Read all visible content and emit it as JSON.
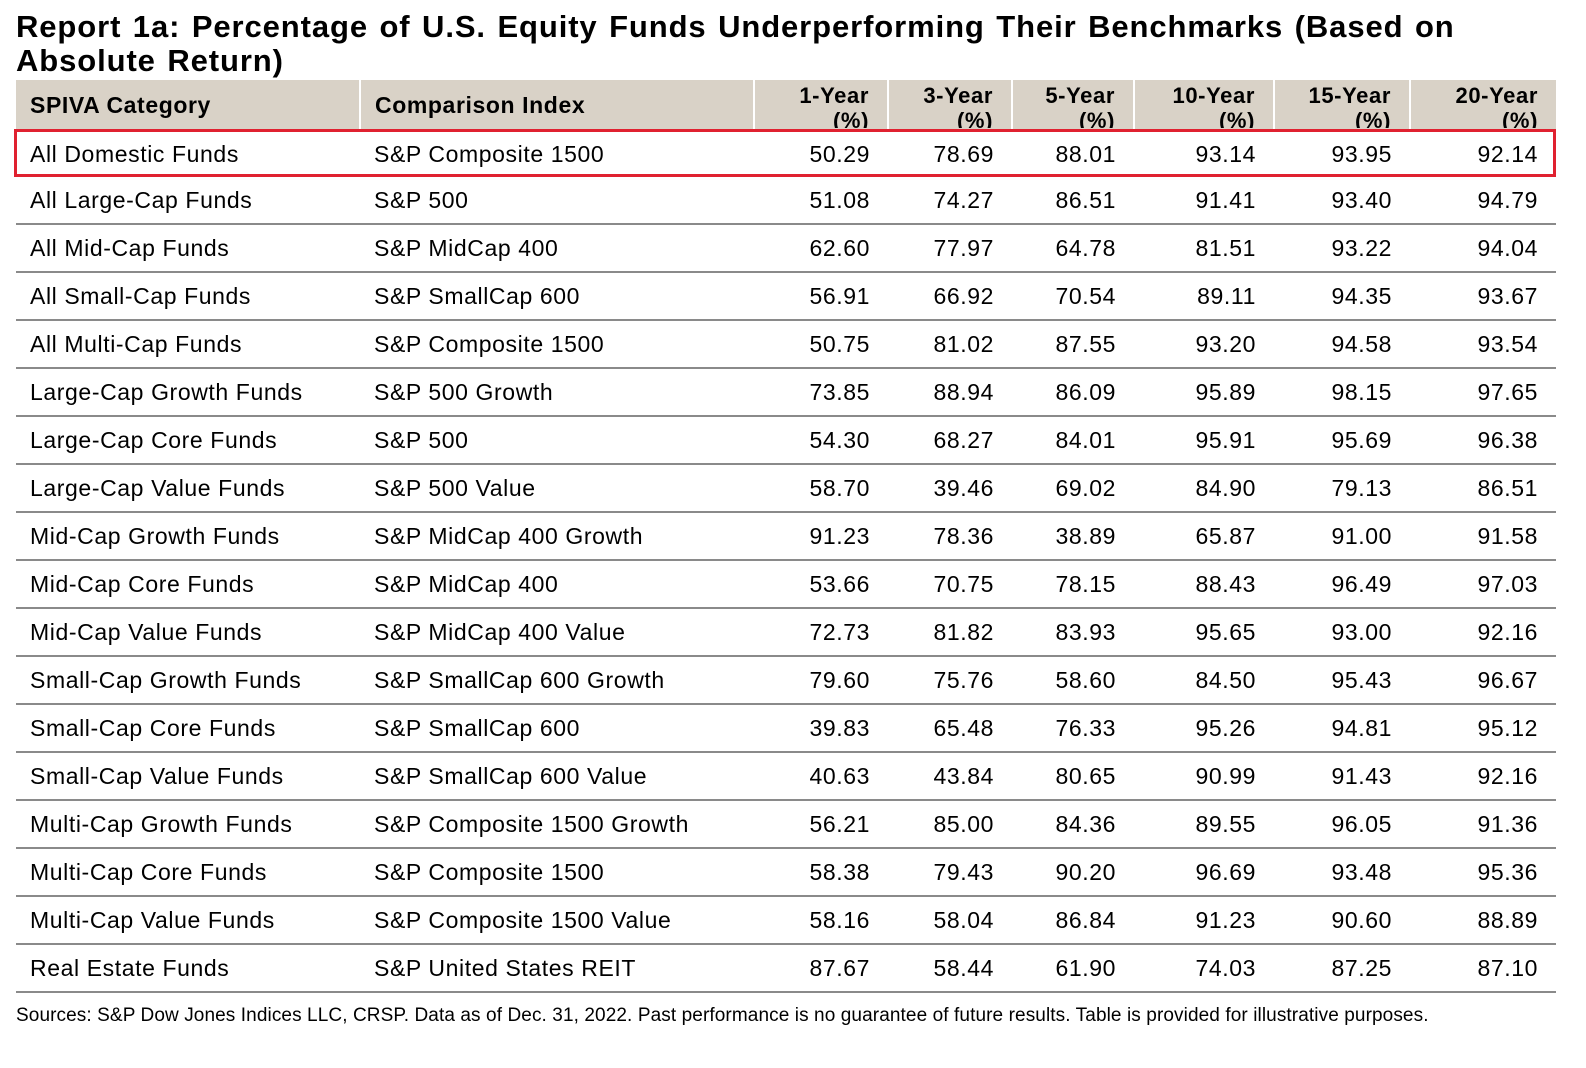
{
  "title": "Report 1a: Percentage of U.S. Equity Funds Underperforming Their Benchmarks (Based on Absolute Return)",
  "headers": {
    "category": "SPIVA Category",
    "index": "Comparison Index",
    "y1_l1": "1-Year",
    "y1_l2": "(%)",
    "y3_l1": "3-Year",
    "y3_l2": "(%)",
    "y5_l1": "5-Year",
    "y5_l2": "(%)",
    "y10_l1": "10-Year",
    "y10_l2": "(%)",
    "y15_l1": "15-Year",
    "y15_l2": "(%)",
    "y20_l1": "20-Year",
    "y20_l2": "(%)"
  },
  "rows": [
    {
      "category": "All Domestic Funds",
      "index": "S&P Composite 1500",
      "y1": "50.29",
      "y3": "78.69",
      "y5": "88.01",
      "y10": "93.14",
      "y15": "93.95",
      "y20": "92.14"
    },
    {
      "category": "All Large-Cap Funds",
      "index": "S&P 500",
      "y1": "51.08",
      "y3": "74.27",
      "y5": "86.51",
      "y10": "91.41",
      "y15": "93.40",
      "y20": "94.79"
    },
    {
      "category": "All Mid-Cap Funds",
      "index": "S&P MidCap 400",
      "y1": "62.60",
      "y3": "77.97",
      "y5": "64.78",
      "y10": "81.51",
      "y15": "93.22",
      "y20": "94.04"
    },
    {
      "category": "All Small-Cap Funds",
      "index": "S&P SmallCap 600",
      "y1": "56.91",
      "y3": "66.92",
      "y5": "70.54",
      "y10": "89.11",
      "y15": "94.35",
      "y20": "93.67"
    },
    {
      "category": "All Multi-Cap Funds",
      "index": "S&P Composite 1500",
      "y1": "50.75",
      "y3": "81.02",
      "y5": "87.55",
      "y10": "93.20",
      "y15": "94.58",
      "y20": "93.54"
    },
    {
      "category": "Large-Cap Growth Funds",
      "index": "S&P 500 Growth",
      "y1": "73.85",
      "y3": "88.94",
      "y5": "86.09",
      "y10": "95.89",
      "y15": "98.15",
      "y20": "97.65"
    },
    {
      "category": "Large-Cap Core Funds",
      "index": "S&P 500",
      "y1": "54.30",
      "y3": "68.27",
      "y5": "84.01",
      "y10": "95.91",
      "y15": "95.69",
      "y20": "96.38"
    },
    {
      "category": "Large-Cap Value Funds",
      "index": "S&P 500 Value",
      "y1": "58.70",
      "y3": "39.46",
      "y5": "69.02",
      "y10": "84.90",
      "y15": "79.13",
      "y20": "86.51"
    },
    {
      "category": "Mid-Cap Growth Funds",
      "index": "S&P MidCap 400 Growth",
      "y1": "91.23",
      "y3": "78.36",
      "y5": "38.89",
      "y10": "65.87",
      "y15": "91.00",
      "y20": "91.58"
    },
    {
      "category": "Mid-Cap Core Funds",
      "index": "S&P MidCap 400",
      "y1": "53.66",
      "y3": "70.75",
      "y5": "78.15",
      "y10": "88.43",
      "y15": "96.49",
      "y20": "97.03"
    },
    {
      "category": "Mid-Cap Value Funds",
      "index": "S&P MidCap 400 Value",
      "y1": "72.73",
      "y3": "81.82",
      "y5": "83.93",
      "y10": "95.65",
      "y15": "93.00",
      "y20": "92.16"
    },
    {
      "category": "Small-Cap Growth Funds",
      "index": "S&P SmallCap 600 Growth",
      "y1": "79.60",
      "y3": "75.76",
      "y5": "58.60",
      "y10": "84.50",
      "y15": "95.43",
      "y20": "96.67"
    },
    {
      "category": "Small-Cap Core Funds",
      "index": "S&P SmallCap 600",
      "y1": "39.83",
      "y3": "65.48",
      "y5": "76.33",
      "y10": "95.26",
      "y15": "94.81",
      "y20": "95.12"
    },
    {
      "category": "Small-Cap Value Funds",
      "index": "S&P SmallCap 600 Value",
      "y1": "40.63",
      "y3": "43.84",
      "y5": "80.65",
      "y10": "90.99",
      "y15": "91.43",
      "y20": "92.16"
    },
    {
      "category": "Multi-Cap Growth Funds",
      "index": "S&P Composite 1500 Growth",
      "y1": "56.21",
      "y3": "85.00",
      "y5": "84.36",
      "y10": "89.55",
      "y15": "96.05",
      "y20": "91.36"
    },
    {
      "category": "Multi-Cap Core Funds",
      "index": "S&P Composite 1500",
      "y1": "58.38",
      "y3": "79.43",
      "y5": "90.20",
      "y10": "96.69",
      "y15": "93.48",
      "y20": "95.36"
    },
    {
      "category": "Multi-Cap Value Funds",
      "index": "S&P Composite 1500 Value",
      "y1": "58.16",
      "y3": "58.04",
      "y5": "86.84",
      "y10": "91.23",
      "y15": "90.60",
      "y20": "88.89"
    },
    {
      "category": "Real Estate Funds",
      "index": "S&P United States REIT",
      "y1": "87.67",
      "y3": "58.44",
      "y5": "61.90",
      "y10": "74.03",
      "y15": "87.25",
      "y20": "87.10"
    }
  ],
  "footer": "Sources: S&P Dow Jones Indices LLC, CRSP.  Data as of Dec. 31, 2022.  Past performance is no guarantee of future results.  Table is provided for illustrative purposes.",
  "colors": {
    "header_bg": "#d9d2c7",
    "highlight_border": "#e02130",
    "row_rule": "#8a8a8a"
  }
}
